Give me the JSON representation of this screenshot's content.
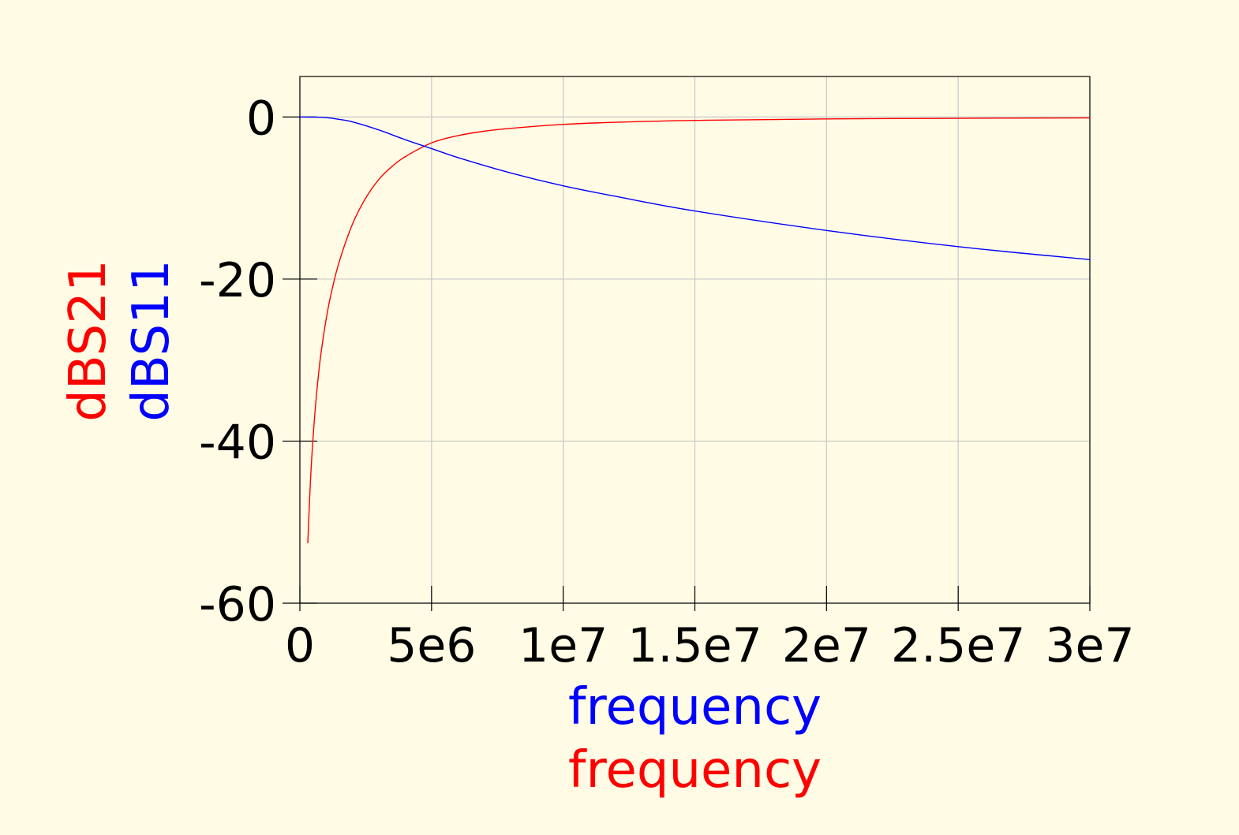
{
  "chart_data": {
    "type": "line",
    "background": "#fffbe4",
    "grid": true,
    "xlim": [
      0,
      30000000
    ],
    "ylim": [
      -60,
      5
    ],
    "x_ticks": [
      {
        "value": 0,
        "label": "0"
      },
      {
        "value": 5000000,
        "label": "5e6"
      },
      {
        "value": 10000000,
        "label": "1e7"
      },
      {
        "value": 15000000,
        "label": "1.5e7"
      },
      {
        "value": 20000000,
        "label": "2e7"
      },
      {
        "value": 25000000,
        "label": "2.5e7"
      },
      {
        "value": 30000000,
        "label": "3e7"
      }
    ],
    "y_ticks": [
      {
        "value": 0,
        "label": "0"
      },
      {
        "value": -20,
        "label": "-20"
      },
      {
        "value": -40,
        "label": "-40"
      },
      {
        "value": -60,
        "label": "-60"
      }
    ],
    "xlabels": [
      {
        "text": "frequency",
        "color": "#0000ff"
      },
      {
        "text": "frequency",
        "color": "#ff0000"
      }
    ],
    "ylabels": [
      {
        "text": "dBS21",
        "color": "#ff0000"
      },
      {
        "text": "dBS11",
        "color": "#0000ff"
      }
    ],
    "series": [
      {
        "name": "dBS21",
        "color": "#ff0000",
        "x": [
          300000,
          400000,
          500000,
          600000,
          700000,
          800000,
          1000000,
          1200000,
          1500000,
          2000000,
          2500000,
          3000000,
          3500000,
          4000000,
          5000000,
          6000000,
          7000000,
          8000000,
          10000000,
          12000000,
          15000000,
          20000000,
          25000000,
          30000000
        ],
        "y": [
          -52.6,
          -45,
          -39.6,
          -35.4,
          -32.0,
          -29.2,
          -24.9,
          -21.6,
          -17.8,
          -13.2,
          -10.0,
          -7.7,
          -6.1,
          -4.9,
          -3.2,
          -2.3,
          -1.75,
          -1.4,
          -0.92,
          -0.65,
          -0.42,
          -0.24,
          -0.16,
          -0.11
        ]
      },
      {
        "name": "dBS11",
        "color": "#0000ff",
        "x": [
          0,
          500000,
          1000000,
          1500000,
          2000000,
          3000000,
          4000000,
          5000000,
          6000000,
          8000000,
          10000000,
          12000000,
          15000000,
          20000000,
          25000000,
          30000000
        ],
        "y": [
          0,
          -0.01,
          -0.08,
          -0.3,
          -0.6,
          -1.6,
          -2.8,
          -3.9,
          -5.0,
          -6.9,
          -8.5,
          -9.8,
          -11.6,
          -14.0,
          -16.0,
          -17.6
        ]
      }
    ]
  }
}
